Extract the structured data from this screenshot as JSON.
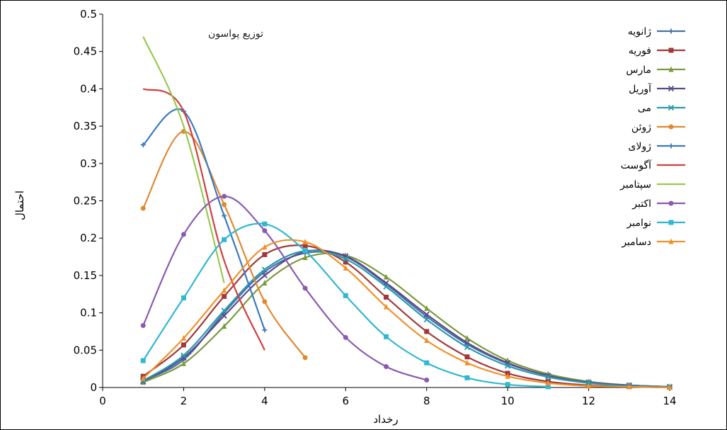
{
  "chart_data": {
    "type": "line",
    "title": "توزیع پواسون",
    "xlabel": "رخداد",
    "ylabel": "احتمال",
    "xlim": [
      0,
      14
    ],
    "ylim": [
      0,
      0.5
    ],
    "xticks": [
      "0",
      "2",
      "4",
      "6",
      "8",
      "10",
      "12",
      "14"
    ],
    "yticks": [
      "0",
      "0.05",
      "0.1",
      "0.15",
      "0.2",
      "0.25",
      "0.3",
      "0.35",
      "0.4",
      "0.45",
      "0.5"
    ],
    "grid": false,
    "legend_position": "right",
    "series": [
      {
        "name": "ژانویه",
        "color": "#4a6fa5",
        "marker": "plus",
        "x": [
          1,
          2,
          3,
          4,
          5,
          6,
          7,
          8,
          9,
          10,
          11,
          12,
          13,
          14
        ],
        "y": [
          0.009,
          0.037,
          0.1,
          0.155,
          0.18,
          0.175,
          0.138,
          0.095,
          0.058,
          0.032,
          0.016,
          0.007,
          0.003,
          0.001
        ]
      },
      {
        "name": "فوریه",
        "color": "#a0393b",
        "marker": "square",
        "x": [
          1,
          2,
          3,
          4,
          5,
          6,
          7,
          8,
          9,
          10,
          11,
          12,
          13,
          14
        ],
        "y": [
          0.015,
          0.057,
          0.122,
          0.178,
          0.19,
          0.168,
          0.121,
          0.075,
          0.041,
          0.019,
          0.008,
          0.003,
          0.001,
          0
        ]
      },
      {
        "name": "مارس",
        "color": "#7a9a3a",
        "marker": "triangle",
        "x": [
          1,
          2,
          3,
          4,
          5,
          6,
          7,
          8,
          9,
          10,
          11,
          12,
          13,
          14
        ],
        "y": [
          0.007,
          0.032,
          0.082,
          0.14,
          0.174,
          0.177,
          0.148,
          0.106,
          0.066,
          0.036,
          0.018,
          0.008,
          0.003,
          0.001
        ]
      },
      {
        "name": "آوریل",
        "color": "#5a4a8a",
        "marker": "x",
        "x": [
          1,
          2,
          3,
          4,
          5,
          6,
          7,
          8,
          9,
          10,
          11,
          12,
          13,
          14
        ],
        "y": [
          0.008,
          0.04,
          0.096,
          0.15,
          0.182,
          0.176,
          0.14,
          0.098,
          0.06,
          0.033,
          0.016,
          0.007,
          0.003,
          0.001
        ]
      },
      {
        "name": "می",
        "color": "#2a9ab0",
        "marker": "x",
        "x": [
          1,
          2,
          3,
          4,
          5,
          6,
          7,
          8,
          9,
          10,
          11,
          12,
          13,
          14
        ],
        "y": [
          0.009,
          0.043,
          0.103,
          0.158,
          0.183,
          0.172,
          0.135,
          0.091,
          0.054,
          0.029,
          0.014,
          0.006,
          0.002,
          0.001
        ]
      },
      {
        "name": "ژوئن",
        "color": "#e08a30",
        "marker": "circle",
        "x": [
          1,
          2,
          3,
          4,
          5
        ],
        "y": [
          0.24,
          0.343,
          0.245,
          0.115,
          0.04
        ]
      },
      {
        "name": "ژولای",
        "color": "#3a7ac0",
        "marker": "plus",
        "x": [
          1,
          2,
          3,
          4
        ],
        "y": [
          0.325,
          0.37,
          0.23,
          0.077
        ]
      },
      {
        "name": "آگوست",
        "color": "#d04040",
        "marker": "none",
        "x": [
          1,
          2,
          3,
          4
        ],
        "y": [
          0.4,
          0.37,
          0.17,
          0.05
        ]
      },
      {
        "name": "سپتامبر",
        "color": "#9ac850",
        "marker": "none",
        "x": [
          1,
          2,
          3
        ],
        "y": [
          0.47,
          0.35,
          0.14
        ]
      },
      {
        "name": "اکتبر",
        "color": "#8a5ab0",
        "marker": "circle",
        "x": [
          1,
          2,
          3,
          4,
          5,
          6,
          7,
          8
        ],
        "y": [
          0.083,
          0.205,
          0.256,
          0.21,
          0.133,
          0.067,
          0.028,
          0.01
        ]
      },
      {
        "name": "نوامبر",
        "color": "#30b8d0",
        "marker": "square",
        "x": [
          1,
          2,
          3,
          4,
          5,
          6,
          7,
          8,
          9,
          10,
          11
        ],
        "y": [
          0.036,
          0.12,
          0.198,
          0.219,
          0.183,
          0.123,
          0.068,
          0.033,
          0.013,
          0.004,
          0.001
        ]
      },
      {
        "name": "دسامبر",
        "color": "#f0902a",
        "marker": "triangle",
        "x": [
          1,
          2,
          3,
          4,
          5,
          6,
          7,
          8,
          9,
          10,
          11,
          12,
          13,
          14
        ],
        "y": [
          0.012,
          0.066,
          0.13,
          0.188,
          0.195,
          0.16,
          0.108,
          0.063,
          0.033,
          0.015,
          0.006,
          0.002,
          0.001,
          0
        ]
      }
    ]
  }
}
